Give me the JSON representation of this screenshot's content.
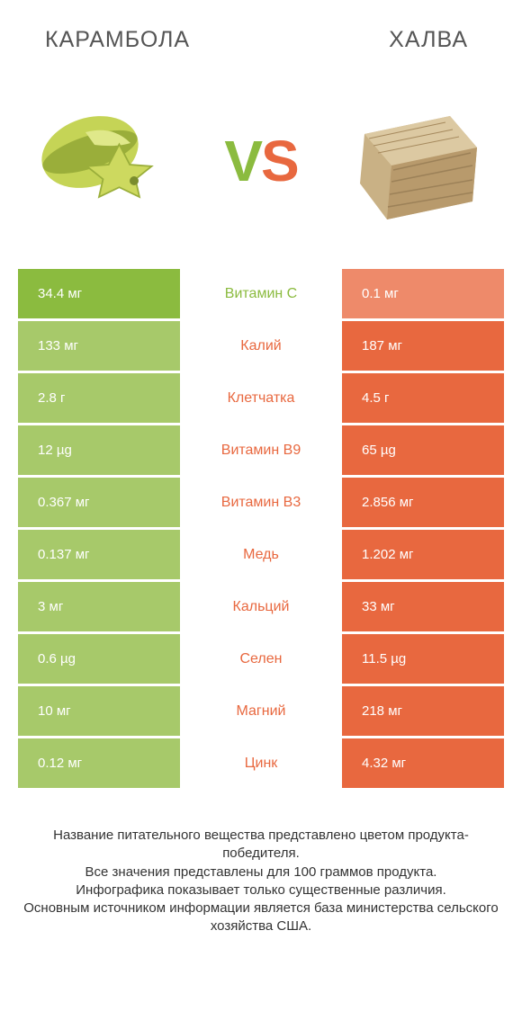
{
  "colors": {
    "green": "#8bbb3f",
    "greenPale": "#a7c96a",
    "orange": "#e8683f",
    "orangePale": "#ee8a6a",
    "textDark": "#555555"
  },
  "header": {
    "left": "Карамбола",
    "right": "Халва"
  },
  "vs": {
    "v": "V",
    "s": "S"
  },
  "rows": [
    {
      "label": "Витамин C",
      "left": "34.4 мг",
      "right": "0.1 мг",
      "winner": "left"
    },
    {
      "label": "Калий",
      "left": "133 мг",
      "right": "187 мг",
      "winner": "right"
    },
    {
      "label": "Клетчатка",
      "left": "2.8 г",
      "right": "4.5 г",
      "winner": "right"
    },
    {
      "label": "Витамин B9",
      "left": "12 µg",
      "right": "65 µg",
      "winner": "right"
    },
    {
      "label": "Витамин B3",
      "left": "0.367 мг",
      "right": "2.856 мг",
      "winner": "right"
    },
    {
      "label": "Медь",
      "left": "0.137 мг",
      "right": "1.202 мг",
      "winner": "right"
    },
    {
      "label": "Кальций",
      "left": "3 мг",
      "right": "33 мг",
      "winner": "right"
    },
    {
      "label": "Селен",
      "left": "0.6 µg",
      "right": "11.5 µg",
      "winner": "right"
    },
    {
      "label": "Магний",
      "left": "10 мг",
      "right": "218 мг",
      "winner": "right"
    },
    {
      "label": "Цинк",
      "left": "0.12 мг",
      "right": "4.32 мг",
      "winner": "right"
    }
  ],
  "footer": "Название питательного вещества представлено цветом продукта-победителя.\nВсе значения представлены для 100 граммов продукта.\nИнфографика показывает только существенные различия.\nОсновным источником информации является база министерства сельского хозяйства США."
}
